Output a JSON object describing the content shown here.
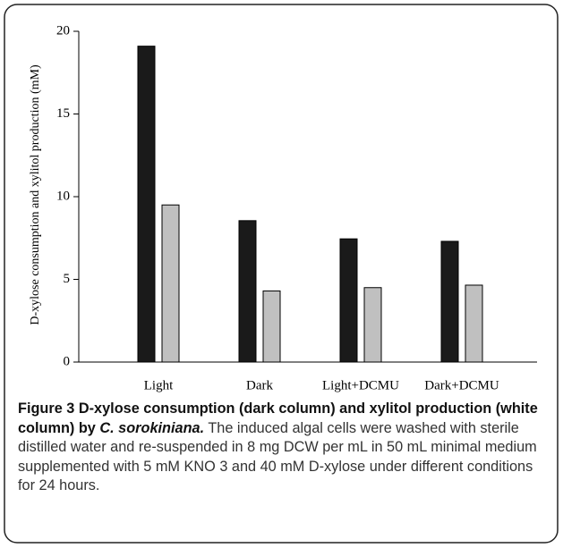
{
  "chart_data": {
    "type": "bar",
    "ylabel": "D-xylose consumption and xylitol production (mM)",
    "categories": [
      "Light",
      "Dark",
      "Light+DCMU",
      "Dark+DCMU"
    ],
    "series": [
      {
        "color": "#1a1a1a",
        "values": [
          19.1,
          8.55,
          7.45,
          7.3
        ]
      },
      {
        "color": "#c0c0c0",
        "values": [
          9.5,
          4.3,
          4.5,
          4.65
        ]
      }
    ],
    "ylim": [
      0,
      20
    ],
    "yticks": [
      0,
      5,
      10,
      15,
      20
    ],
    "grid": false
  },
  "caption": {
    "label": "Figure 3",
    "title": "D-xylose consumption (dark column) and xylitol production (white column) by",
    "species": "C. sorokiniana.",
    "text": "The induced algal cells were washed with sterile distilled water and re-suspended in 8 mg DCW per mL in 50 mL minimal medium supplemented with 5 mM KNO 3 and 40 mM D-xylose under different conditions for 24 hours."
  }
}
